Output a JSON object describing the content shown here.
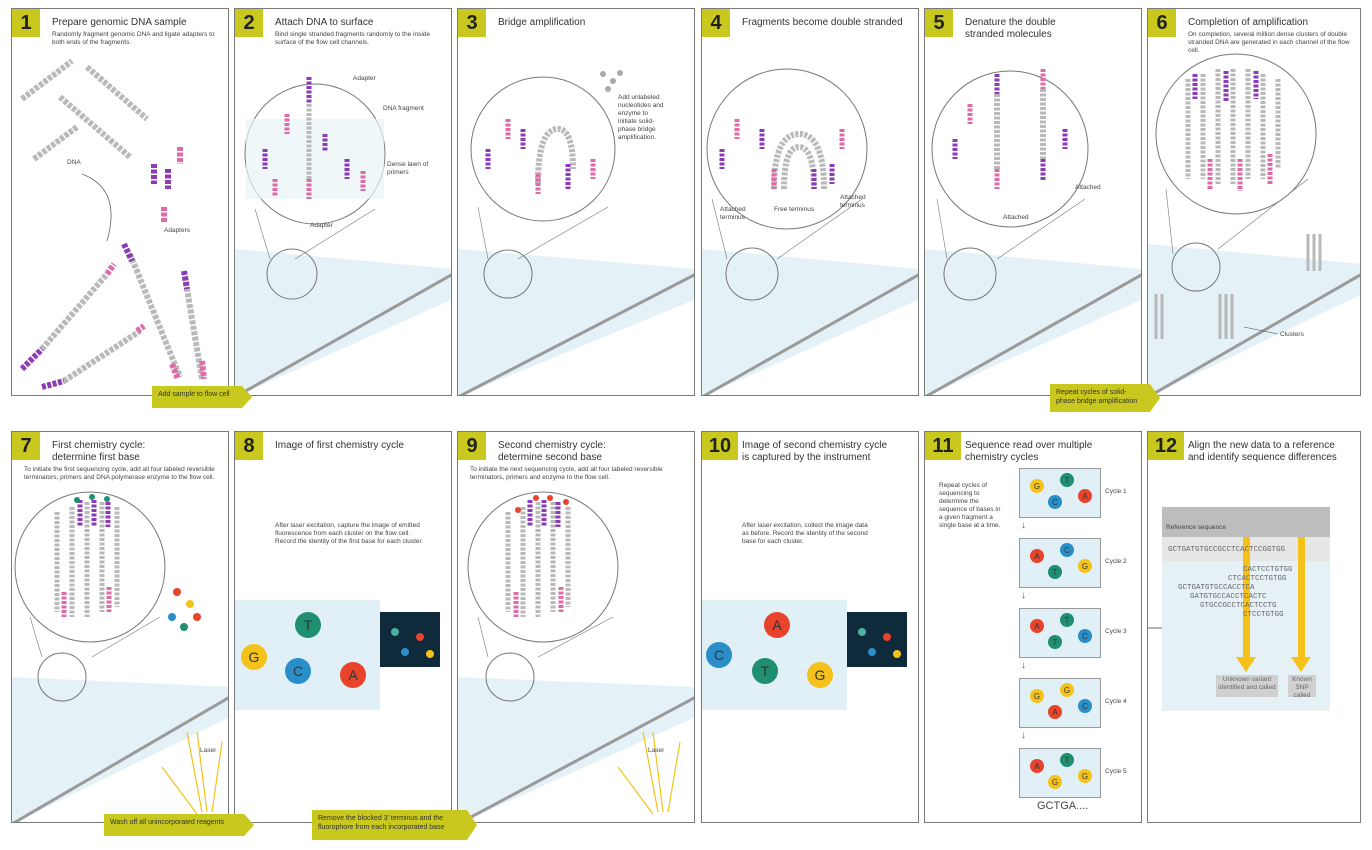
{
  "colors": {
    "accent": "#c8c81e",
    "purple": "#8b3bb5",
    "pink": "#e06aa8",
    "gray": "#b9b9b9",
    "cyan": "#cfe7f0",
    "orange": "#e8432b",
    "green": "#1f8f70",
    "blue": "#2a8fc8",
    "yellow": "#f5c21b"
  },
  "panels": [
    {
      "num": "1",
      "title": "Prepare genomic DNA sample",
      "desc": "Randomly fragment genomic DNA and ligate adapters to both ends of the fragments.",
      "labels": [
        "DNA",
        "Adapters"
      ]
    },
    {
      "num": "2",
      "title": "Attach DNA to surface",
      "desc": "Bind single stranded fragments randomly to the inside surface of the flow cell channels.",
      "labels": [
        "Adapter",
        "DNA fragment",
        "Dense lawn of primers",
        "Adapter"
      ]
    },
    {
      "num": "3",
      "title": "Bridge amplification",
      "desc": "",
      "labels": [
        "Add unlabeled nucleotides and enzyme to initiate solid-phase bridge amplification."
      ]
    },
    {
      "num": "4",
      "title": "Fragments become double stranded",
      "desc": "",
      "labels": [
        "Attached terminus",
        "Free terminus",
        "Attached terminus"
      ]
    },
    {
      "num": "5",
      "title": "Denature the double stranded molecules",
      "desc": "",
      "labels": [
        "Attached",
        "Attached"
      ]
    },
    {
      "num": "6",
      "title": "Completion of amplification",
      "desc": "On completion, several million dense clusters of double stranded DNA are generated in each channel of the flow cell.",
      "labels": [
        "Clusters"
      ]
    },
    {
      "num": "7",
      "title": "First chemistry cycle: determine first base",
      "desc": "To initiate the first sequencing cycle, add all four labeled reversible terminators, primers and DNA polymerase enzyme to the flow cell.",
      "labels": [
        "Laser"
      ]
    },
    {
      "num": "8",
      "title": "Image of first chemistry cycle",
      "desc": "After laser excitation, capture the image of emitted fluorescence from each cluster on the flow cell. Record the identity of the first base for each cluster.",
      "labels": []
    },
    {
      "num": "9",
      "title": "Second chemistry cycle: determine second base",
      "desc": "To initiate the next sequencing cycle, add all four labeled reversible terminators, primers and enzyme to the flow cell.",
      "labels": [
        "Laser"
      ]
    },
    {
      "num": "10",
      "title": "Image of second chemistry cycle is captured by the instrument",
      "desc": "After laser excitation, collect the image data as before. Record the identity of the second base for each cluster.",
      "labels": []
    },
    {
      "num": "11",
      "title": "Sequence read over multiple chemistry cycles",
      "desc": "Repeat cycles of sequencing to determine the sequence of bases in a given fragment a single base at a time.",
      "labels": [
        "Cycle 1",
        "Cycle 2",
        "Cycle 3",
        "Cycle 4",
        "Cycle 5"
      ],
      "result": "GCTGA...."
    },
    {
      "num": "12",
      "title": "Align the new data to a reference and identify sequence differences",
      "desc": "",
      "labels": [
        "Reference sequence",
        "Unknown variant identified and called",
        "Known SNP called"
      ]
    }
  ],
  "tags": {
    "t1": "Add sample to flow cell",
    "t2": "Repeat cycles of solid-phase bridge amplification",
    "t3": "Wash off all unincorporated reagents",
    "t4": "Remove the blocked 3' terminus and the fluorophore from each incorporated base"
  },
  "bases": {
    "p8": [
      "G",
      "T",
      "C",
      "A"
    ],
    "p10": [
      "C",
      "A",
      "T",
      "G"
    ],
    "cycles": [
      [
        "G",
        "T",
        "C",
        "A"
      ],
      [
        "A",
        "C",
        "T",
        "G"
      ],
      [
        "A",
        "T",
        "T",
        "C"
      ],
      [
        "G",
        "G",
        "A",
        "C"
      ],
      [
        "A",
        "T",
        "G",
        "G"
      ]
    ]
  },
  "alignment": {
    "reference": "GCTGATGTGCCGCCTCACTCCGGTGG",
    "reads": [
      "CACTCCTGTGG",
      "CTCACTCCTGTGG",
      "GCTGATGTGCCACCTCA",
      "GATGTGCCACCTCACTC",
      "GTGCCGCCTCACTCCTG",
      "CTCCTGTGG"
    ]
  }
}
